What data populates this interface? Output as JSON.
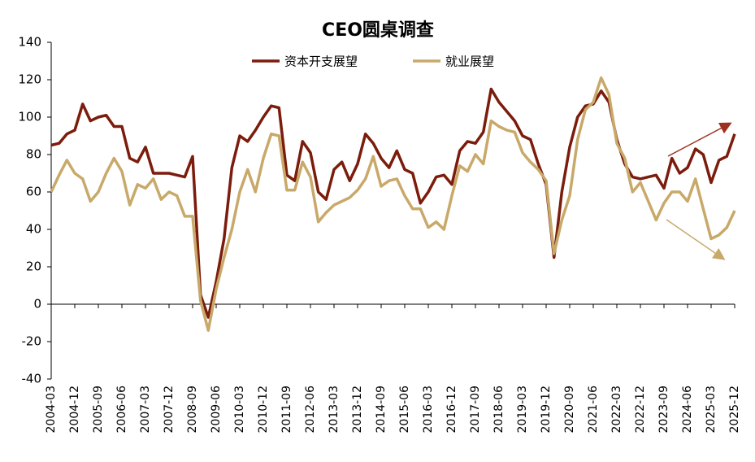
{
  "chart_data": {
    "type": "line",
    "title": "CEO圆桌调查",
    "categories": [
      "2004-03",
      null,
      null,
      "2004-12",
      null,
      null,
      "2005-09",
      null,
      null,
      "2006-06",
      null,
      null,
      "2007-03",
      null,
      null,
      "2007-12",
      null,
      null,
      "2008-09",
      null,
      null,
      "2009-06",
      null,
      null,
      "2010-03",
      null,
      null,
      "2010-12",
      null,
      null,
      "2011-09",
      null,
      null,
      "2012-06",
      null,
      null,
      "2013-03",
      null,
      null,
      "2013-12",
      null,
      null,
      "2014-09",
      null,
      null,
      "2015-06",
      null,
      null,
      "2016-03",
      null,
      null,
      "2016-12",
      null,
      null,
      "2017-09",
      null,
      null,
      "2018-06",
      null,
      null,
      "2019-03",
      null,
      null,
      "2019-12",
      null,
      null,
      "2020-09",
      null,
      null,
      "2021-06",
      null,
      null,
      "2022-03",
      null,
      null,
      "2022-12",
      null,
      null,
      "2023-09",
      null,
      null,
      "2024-06",
      null,
      null,
      "2025-03",
      null,
      null,
      "2025-12"
    ],
    "series": [
      {
        "name": "资本开支展望",
        "color": "#7b1c0c",
        "values": [
          85,
          86,
          91,
          93,
          107,
          98,
          100,
          101,
          95,
          95,
          78,
          76,
          84,
          70,
          70,
          70,
          69,
          68,
          79,
          5,
          -7,
          12,
          35,
          73,
          90,
          87,
          93,
          100,
          106,
          105,
          69,
          66,
          87,
          81,
          60,
          56,
          72,
          76,
          66,
          75,
          91,
          86,
          78,
          73,
          82,
          72,
          70,
          54,
          60,
          68,
          69,
          64,
          82,
          87,
          86,
          92,
          115,
          108,
          103,
          98,
          90,
          88,
          75,
          64,
          25,
          60,
          84,
          100,
          106,
          107,
          114,
          108,
          88,
          75,
          68,
          67,
          68,
          69,
          62,
          78,
          70,
          73,
          83,
          80,
          65,
          77,
          79,
          91
        ]
      },
      {
        "name": "就业展望",
        "color": "#c8a96a",
        "values": [
          60,
          69,
          77,
          70,
          67,
          55,
          60,
          70,
          78,
          71,
          53,
          64,
          62,
          67,
          56,
          60,
          58,
          47,
          47,
          2,
          -14,
          8,
          25,
          40,
          60,
          72,
          60,
          78,
          91,
          90,
          61,
          61,
          76,
          68,
          44,
          49,
          53,
          55,
          57,
          61,
          67,
          79,
          63,
          66,
          67,
          58,
          51,
          51,
          41,
          44,
          40,
          58,
          74,
          71,
          80,
          75,
          98,
          95,
          93,
          92,
          81,
          76,
          72,
          66,
          27,
          45,
          58,
          88,
          104,
          108,
          121,
          112,
          86,
          78,
          60,
          65,
          55,
          45,
          54,
          60,
          60,
          55,
          67,
          51,
          35,
          37,
          41,
          50
        ]
      }
    ],
    "ylim": [
      -40,
      140
    ],
    "yticks": [
      -40,
      -20,
      0,
      20,
      40,
      60,
      80,
      100,
      120,
      140
    ],
    "grid": false,
    "legend": "top"
  }
}
